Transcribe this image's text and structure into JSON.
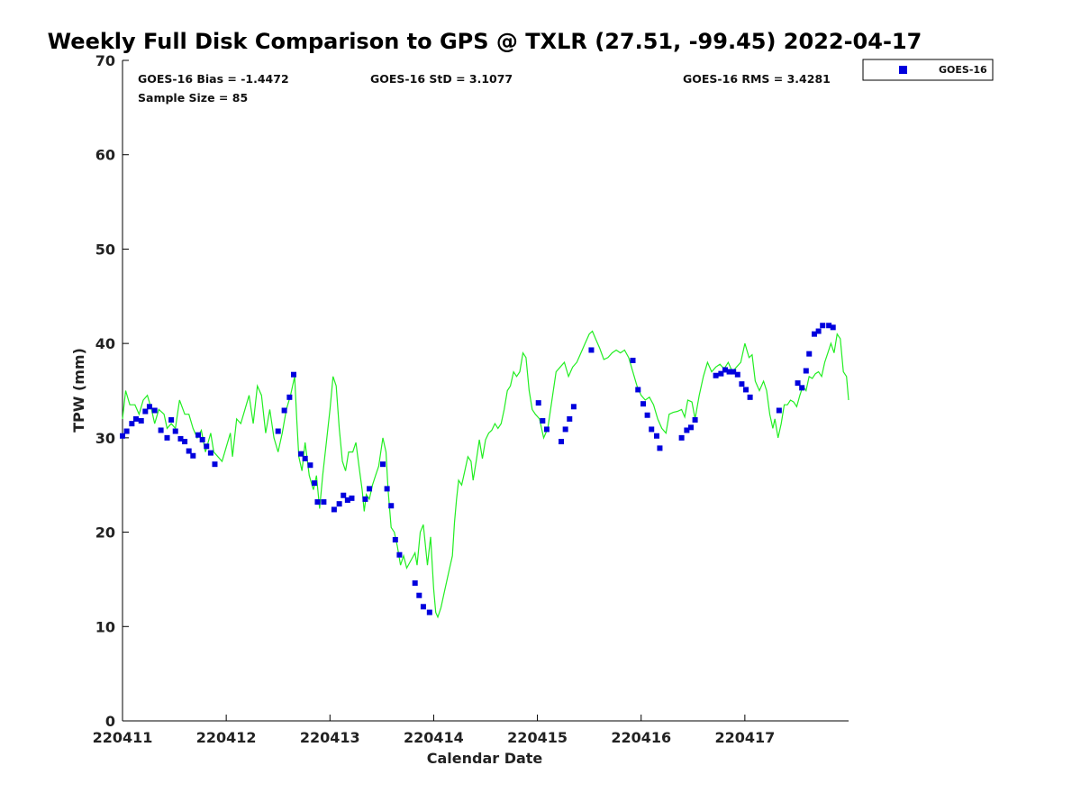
{
  "chart_data": {
    "type": "scatter",
    "title": "Weekly Full Disk Comparison to GPS @ TXLR (27.51, -99.45) 2022-04-17",
    "xlabel": "Calendar Date",
    "ylabel": "TPW (mm)",
    "xlim": [
      0,
      7
    ],
    "ylim": [
      0,
      70
    ],
    "xticks": [
      {
        "value": 0,
        "label": "220411"
      },
      {
        "value": 1,
        "label": "220412"
      },
      {
        "value": 2,
        "label": "220413"
      },
      {
        "value": 3,
        "label": "220414"
      },
      {
        "value": 4,
        "label": "220415"
      },
      {
        "value": 5,
        "label": "220416"
      },
      {
        "value": 6,
        "label": "220417"
      }
    ],
    "yticks": [
      0,
      10,
      20,
      30,
      40,
      50,
      60,
      70
    ],
    "stats": {
      "bias": "GOES-16 Bias = -1.4472",
      "std": "GOES-16 StD = 3.1077",
      "rms": "GOES-16 RMS = 3.4281",
      "sample": "Sample Size = 85"
    },
    "legend": {
      "label": "GOES-16",
      "position": "top-right outside"
    },
    "colors": {
      "goes": "#0000dd",
      "gps": "#22ee22"
    },
    "gps_line": [
      [
        0.0,
        32.0
      ],
      [
        0.03,
        35.0
      ],
      [
        0.07,
        33.5
      ],
      [
        0.12,
        33.5
      ],
      [
        0.16,
        32.5
      ],
      [
        0.2,
        34.0
      ],
      [
        0.24,
        34.5
      ],
      [
        0.28,
        33.0
      ],
      [
        0.31,
        31.5
      ],
      [
        0.35,
        33.0
      ],
      [
        0.4,
        32.5
      ],
      [
        0.43,
        31.0
      ],
      [
        0.47,
        31.5
      ],
      [
        0.51,
        31.0
      ],
      [
        0.55,
        34.0
      ],
      [
        0.6,
        32.5
      ],
      [
        0.64,
        32.5
      ],
      [
        0.68,
        31.0
      ],
      [
        0.72,
        30.0
      ],
      [
        0.76,
        30.8
      ],
      [
        0.8,
        28.5
      ],
      [
        0.85,
        30.5
      ],
      [
        0.88,
        28.5
      ],
      [
        0.92,
        28.0
      ],
      [
        0.96,
        27.5
      ],
      [
        1.0,
        29.0
      ],
      [
        1.04,
        30.5
      ],
      [
        1.06,
        28.0
      ],
      [
        1.1,
        32.0
      ],
      [
        1.14,
        31.5
      ],
      [
        1.18,
        33.0
      ],
      [
        1.22,
        34.5
      ],
      [
        1.26,
        31.5
      ],
      [
        1.3,
        35.5
      ],
      [
        1.34,
        34.5
      ],
      [
        1.38,
        30.5
      ],
      [
        1.42,
        33.0
      ],
      [
        1.46,
        30.0
      ],
      [
        1.5,
        28.5
      ],
      [
        1.54,
        30.5
      ],
      [
        1.58,
        33.0
      ],
      [
        1.62,
        34.5
      ],
      [
        1.66,
        36.5
      ],
      [
        1.68,
        32.0
      ],
      [
        1.7,
        28.0
      ],
      [
        1.73,
        26.5
      ],
      [
        1.76,
        29.5
      ],
      [
        1.8,
        26.0
      ],
      [
        1.84,
        24.5
      ],
      [
        1.87,
        26.0
      ],
      [
        1.9,
        22.5
      ],
      [
        1.93,
        26.0
      ],
      [
        1.96,
        29.0
      ],
      [
        2.0,
        33.0
      ],
      [
        2.03,
        36.5
      ],
      [
        2.06,
        35.5
      ],
      [
        2.09,
        31.0
      ],
      [
        2.12,
        27.5
      ],
      [
        2.15,
        26.5
      ],
      [
        2.18,
        28.5
      ],
      [
        2.22,
        28.5
      ],
      [
        2.25,
        29.5
      ],
      [
        2.28,
        27.0
      ],
      [
        2.31,
        24.5
      ],
      [
        2.33,
        22.2
      ],
      [
        2.35,
        24.0
      ],
      [
        2.38,
        23.5
      ],
      [
        2.41,
        25.0
      ],
      [
        2.44,
        26.0
      ],
      [
        2.47,
        27.0
      ],
      [
        2.51,
        30.0
      ],
      [
        2.54,
        28.5
      ],
      [
        2.56,
        24.5
      ],
      [
        2.59,
        20.5
      ],
      [
        2.62,
        20.0
      ],
      [
        2.65,
        18.5
      ],
      [
        2.68,
        16.5
      ],
      [
        2.71,
        17.5
      ],
      [
        2.74,
        16.2
      ],
      [
        2.78,
        17.0
      ],
      [
        2.82,
        17.8
      ],
      [
        2.84,
        16.5
      ],
      [
        2.87,
        20.0
      ],
      [
        2.9,
        20.8
      ],
      [
        2.94,
        16.5
      ],
      [
        2.97,
        19.5
      ],
      [
        3.0,
        14.0
      ],
      [
        3.02,
        11.5
      ],
      [
        3.04,
        11.0
      ],
      [
        3.07,
        12.0
      ],
      [
        3.1,
        13.5
      ],
      [
        3.14,
        15.5
      ],
      [
        3.18,
        17.5
      ],
      [
        3.2,
        21.0
      ],
      [
        3.22,
        23.5
      ],
      [
        3.24,
        25.5
      ],
      [
        3.27,
        25.0
      ],
      [
        3.3,
        26.5
      ],
      [
        3.33,
        28.0
      ],
      [
        3.36,
        27.5
      ],
      [
        3.38,
        25.5
      ],
      [
        3.41,
        27.5
      ],
      [
        3.44,
        29.8
      ],
      [
        3.47,
        27.8
      ],
      [
        3.5,
        29.8
      ],
      [
        3.53,
        30.5
      ],
      [
        3.56,
        30.8
      ],
      [
        3.59,
        31.5
      ],
      [
        3.62,
        31.0
      ],
      [
        3.65,
        31.5
      ],
      [
        3.68,
        33.0
      ],
      [
        3.71,
        35.0
      ],
      [
        3.74,
        35.5
      ],
      [
        3.77,
        37.0
      ],
      [
        3.8,
        36.5
      ],
      [
        3.83,
        37.0
      ],
      [
        3.86,
        39.0
      ],
      [
        3.89,
        38.5
      ],
      [
        3.92,
        35.0
      ],
      [
        3.95,
        33.0
      ],
      [
        3.98,
        32.5
      ],
      [
        4.02,
        32.0
      ],
      [
        4.06,
        30.0
      ],
      [
        4.1,
        31.0
      ],
      [
        4.14,
        34.0
      ],
      [
        4.18,
        37.0
      ],
      [
        4.22,
        37.5
      ],
      [
        4.26,
        38.0
      ],
      [
        4.3,
        36.5
      ],
      [
        4.34,
        37.5
      ],
      [
        4.38,
        38.0
      ],
      [
        4.42,
        39.0
      ],
      [
        4.46,
        40.0
      ],
      [
        4.5,
        41.0
      ],
      [
        4.53,
        41.3
      ],
      [
        4.56,
        40.5
      ],
      [
        4.6,
        39.5
      ],
      [
        4.64,
        38.3
      ],
      [
        4.68,
        38.5
      ],
      [
        4.72,
        39.0
      ],
      [
        4.76,
        39.3
      ],
      [
        4.8,
        39.0
      ],
      [
        4.84,
        39.3
      ],
      [
        4.88,
        38.5
      ],
      [
        4.92,
        37.0
      ],
      [
        4.96,
        35.5
      ],
      [
        5.0,
        34.5
      ],
      [
        5.04,
        34.0
      ],
      [
        5.08,
        34.3
      ],
      [
        5.12,
        33.5
      ],
      [
        5.16,
        32.0
      ],
      [
        5.2,
        31.0
      ],
      [
        5.24,
        30.5
      ],
      [
        5.27,
        32.5
      ],
      [
        5.31,
        32.7
      ],
      [
        5.35,
        32.8
      ],
      [
        5.39,
        33.0
      ],
      [
        5.42,
        32.2
      ],
      [
        5.45,
        34.0
      ],
      [
        5.49,
        33.8
      ],
      [
        5.52,
        32.0
      ],
      [
        5.56,
        34.5
      ],
      [
        5.6,
        36.5
      ],
      [
        5.64,
        38.0
      ],
      [
        5.68,
        37.0
      ],
      [
        5.72,
        37.5
      ],
      [
        5.76,
        37.8
      ],
      [
        5.8,
        37.3
      ],
      [
        5.84,
        38.0
      ],
      [
        5.88,
        37.0
      ],
      [
        5.92,
        37.5
      ],
      [
        5.96,
        38.0
      ],
      [
        6.0,
        40.0
      ],
      [
        6.04,
        38.5
      ],
      [
        6.07,
        38.8
      ],
      [
        6.1,
        36.0
      ],
      [
        6.14,
        35.0
      ],
      [
        6.18,
        36.0
      ],
      [
        6.21,
        35.0
      ],
      [
        6.24,
        32.5
      ],
      [
        6.27,
        31.0
      ],
      [
        6.29,
        32.0
      ],
      [
        6.32,
        30.0
      ],
      [
        6.35,
        31.5
      ],
      [
        6.38,
        33.5
      ],
      [
        6.41,
        33.5
      ],
      [
        6.44,
        34.0
      ],
      [
        6.47,
        33.8
      ],
      [
        6.5,
        33.3
      ],
      [
        6.53,
        34.5
      ],
      [
        6.56,
        35.5
      ],
      [
        6.59,
        35.0
      ],
      [
        6.62,
        36.5
      ],
      [
        6.65,
        36.3
      ],
      [
        6.68,
        36.8
      ],
      [
        6.71,
        37.0
      ],
      [
        6.74,
        36.5
      ],
      [
        6.77,
        38.0
      ],
      [
        6.8,
        39.0
      ],
      [
        6.83,
        40.0
      ],
      [
        6.86,
        39.0
      ],
      [
        6.89,
        41.0
      ],
      [
        6.92,
        40.5
      ],
      [
        6.95,
        37.0
      ],
      [
        6.98,
        36.5
      ],
      [
        7.0,
        34.0
      ]
    ],
    "series": [
      {
        "name": "GOES-16",
        "points": [
          [
            0.0,
            30.2
          ],
          [
            0.04,
            30.7
          ],
          [
            0.09,
            31.5
          ],
          [
            0.13,
            32.0
          ],
          [
            0.18,
            31.8
          ],
          [
            0.22,
            32.8
          ],
          [
            0.26,
            33.3
          ],
          [
            0.31,
            32.9
          ],
          [
            0.37,
            30.8
          ],
          [
            0.43,
            30.0
          ],
          [
            0.47,
            31.9
          ],
          [
            0.51,
            30.7
          ],
          [
            0.56,
            29.9
          ],
          [
            0.6,
            29.6
          ],
          [
            0.64,
            28.6
          ],
          [
            0.68,
            28.1
          ],
          [
            0.73,
            30.3
          ],
          [
            0.77,
            29.8
          ],
          [
            0.81,
            29.1
          ],
          [
            0.85,
            28.4
          ],
          [
            0.89,
            27.2
          ],
          [
            1.5,
            30.7
          ],
          [
            1.56,
            32.9
          ],
          [
            1.61,
            34.3
          ],
          [
            1.65,
            36.7
          ],
          [
            1.72,
            28.3
          ],
          [
            1.76,
            27.8
          ],
          [
            1.81,
            27.1
          ],
          [
            1.85,
            25.2
          ],
          [
            1.88,
            23.2
          ],
          [
            1.94,
            23.2
          ],
          [
            2.04,
            22.4
          ],
          [
            2.09,
            23.0
          ],
          [
            2.13,
            23.9
          ],
          [
            2.17,
            23.4
          ],
          [
            2.21,
            23.6
          ],
          [
            2.34,
            23.5
          ],
          [
            2.38,
            24.6
          ],
          [
            2.51,
            27.2
          ],
          [
            2.55,
            24.6
          ],
          [
            2.59,
            22.8
          ],
          [
            2.63,
            19.2
          ],
          [
            2.67,
            17.6
          ],
          [
            2.82,
            14.6
          ],
          [
            2.86,
            13.3
          ],
          [
            2.9,
            12.1
          ],
          [
            2.96,
            11.5
          ],
          [
            4.01,
            33.7
          ],
          [
            4.05,
            31.8
          ],
          [
            4.09,
            30.9
          ],
          [
            4.23,
            29.6
          ],
          [
            4.27,
            30.9
          ],
          [
            4.31,
            32.0
          ],
          [
            4.35,
            33.3
          ],
          [
            4.52,
            39.3
          ],
          [
            4.92,
            38.2
          ],
          [
            4.97,
            35.1
          ],
          [
            5.02,
            33.6
          ],
          [
            5.06,
            32.4
          ],
          [
            5.1,
            30.9
          ],
          [
            5.15,
            30.2
          ],
          [
            5.18,
            28.9
          ],
          [
            5.39,
            30.0
          ],
          [
            5.44,
            30.8
          ],
          [
            5.48,
            31.1
          ],
          [
            5.52,
            31.9
          ],
          [
            5.72,
            36.6
          ],
          [
            5.77,
            36.8
          ],
          [
            5.81,
            37.2
          ],
          [
            5.85,
            37.0
          ],
          [
            5.89,
            37.0
          ],
          [
            5.93,
            36.7
          ],
          [
            5.97,
            35.7
          ],
          [
            6.01,
            35.1
          ],
          [
            6.05,
            34.3
          ],
          [
            6.33,
            32.9
          ],
          [
            6.51,
            35.8
          ],
          [
            6.55,
            35.3
          ],
          [
            6.59,
            37.1
          ],
          [
            6.62,
            38.9
          ],
          [
            6.67,
            41.0
          ],
          [
            6.71,
            41.3
          ],
          [
            6.75,
            41.9
          ],
          [
            6.81,
            41.9
          ],
          [
            6.85,
            41.7
          ]
        ]
      }
    ]
  }
}
